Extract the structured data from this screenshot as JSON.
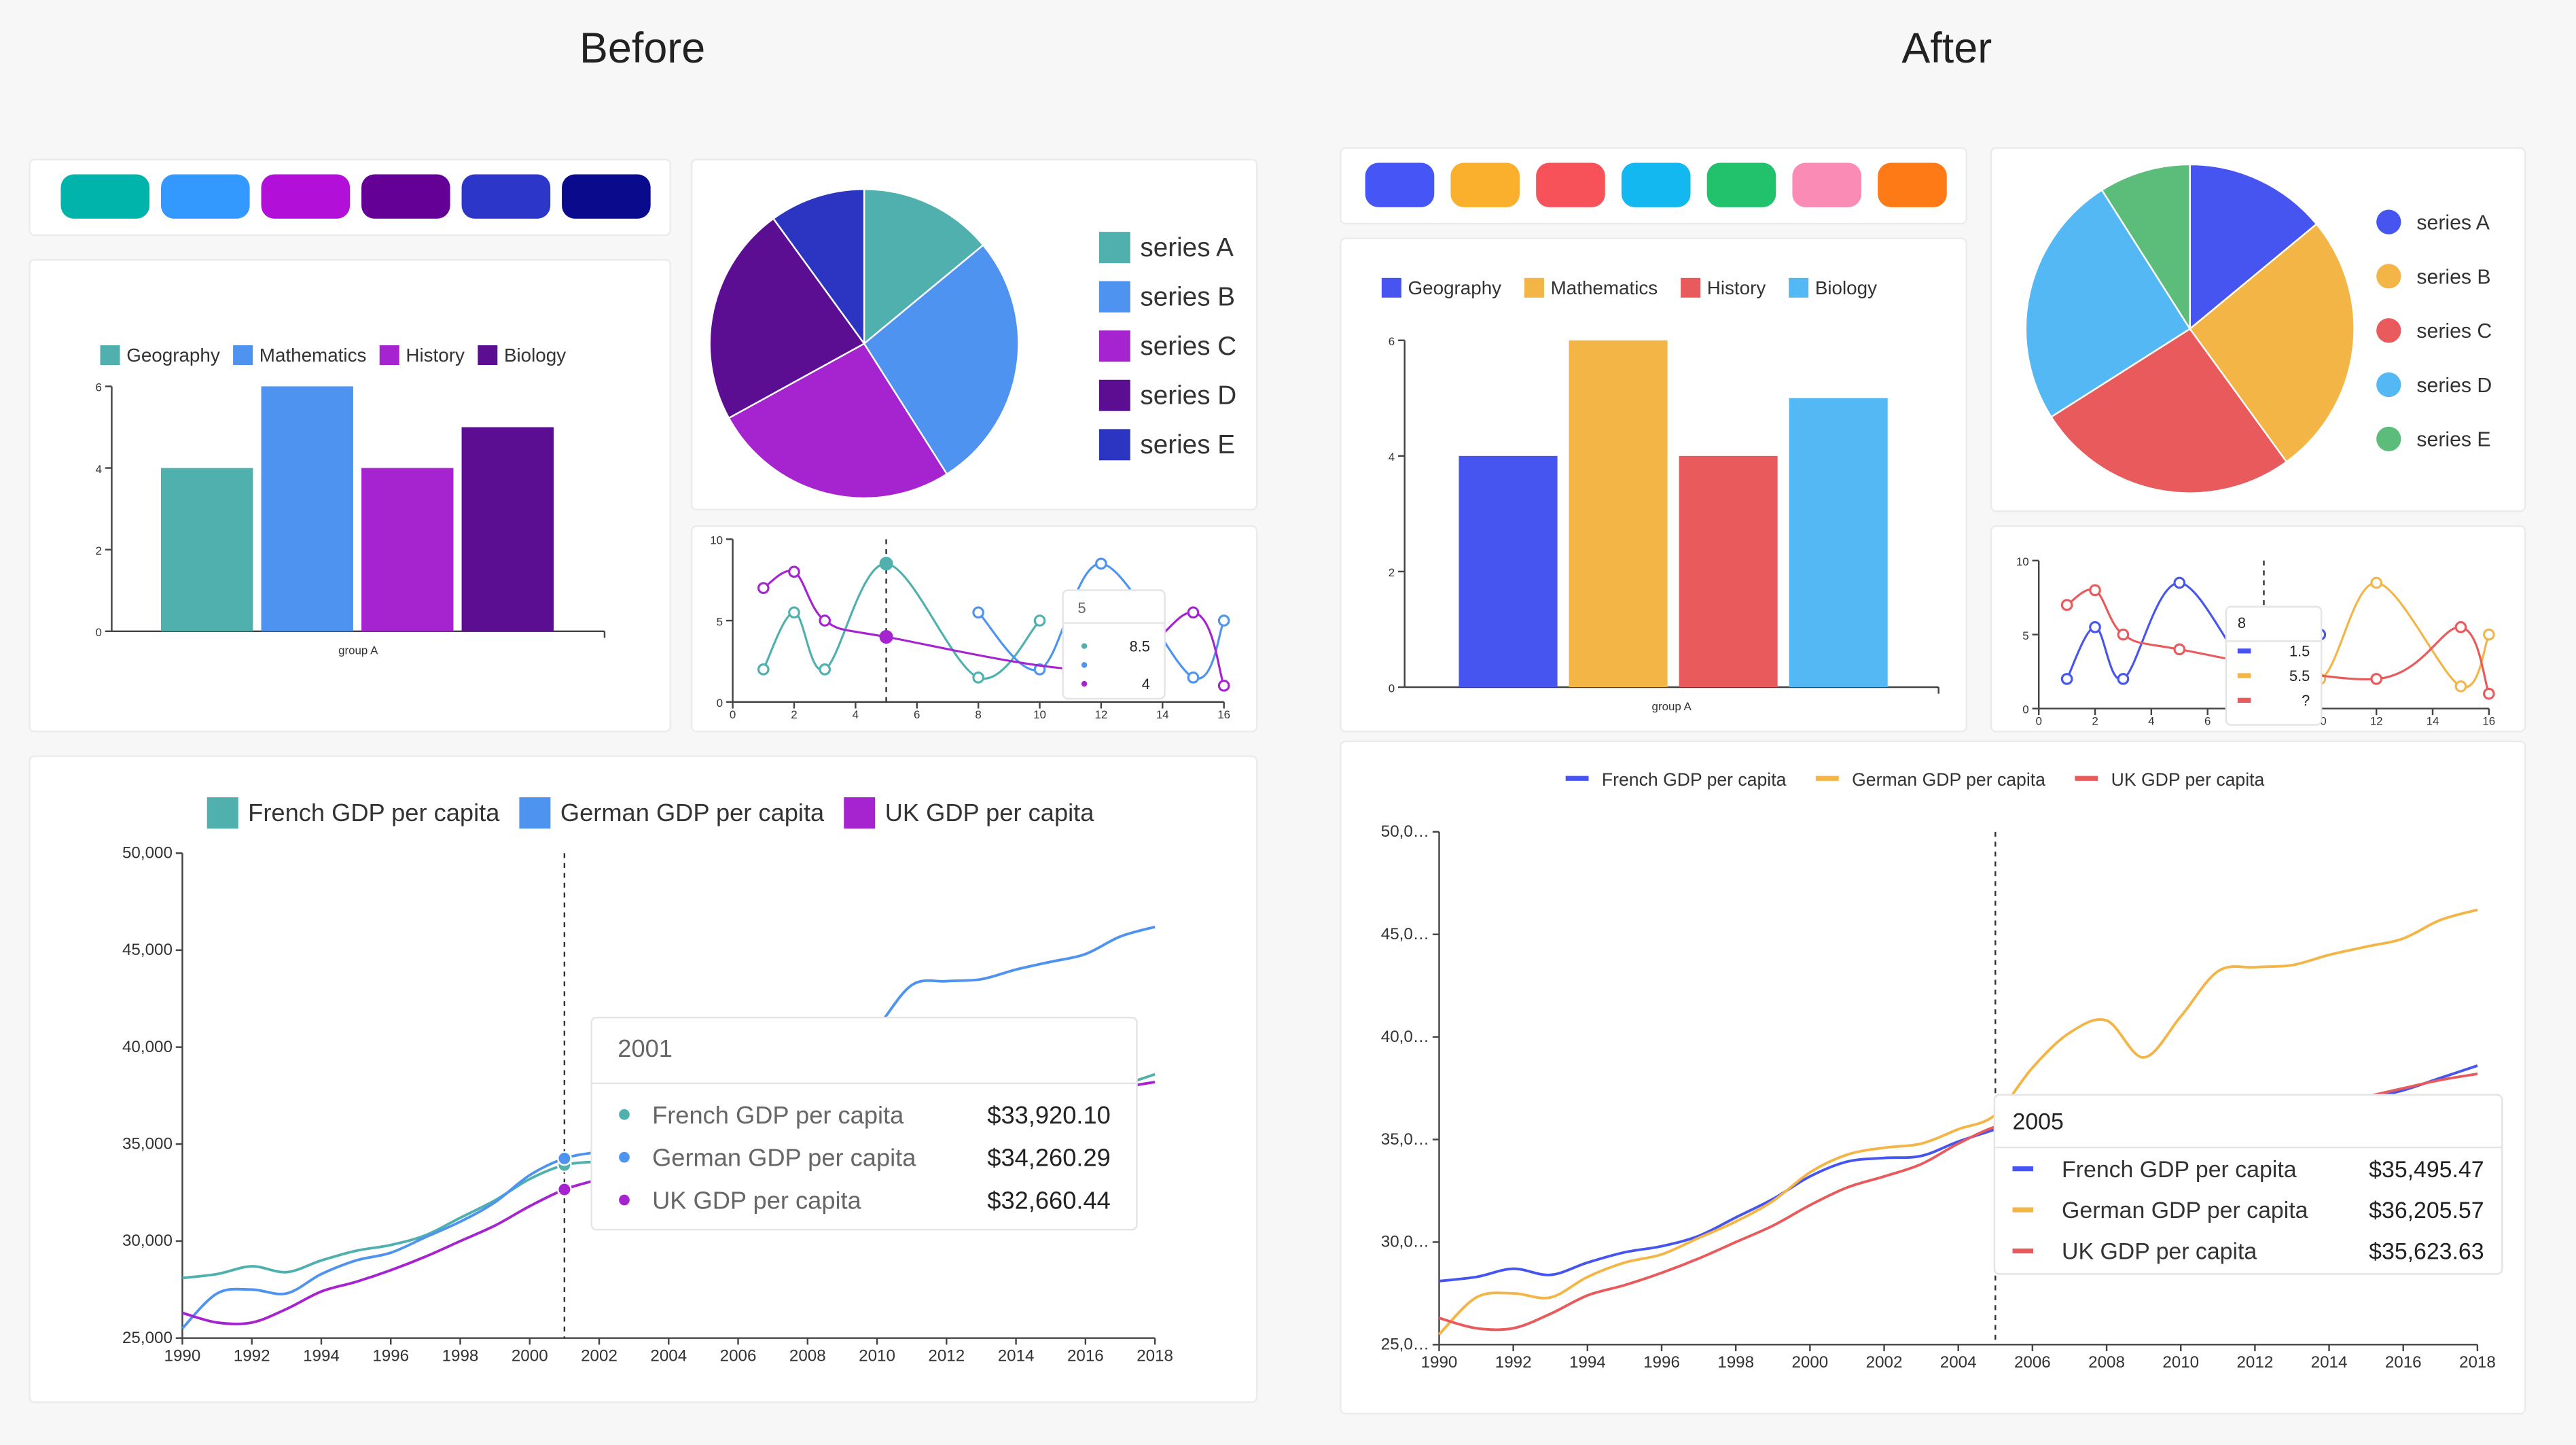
{
  "titles": {
    "before": "Before",
    "after": "After"
  },
  "swatches": {
    "before": [
      "#00b3ab",
      "#3399ff",
      "#b20fd8",
      "#640096",
      "#2c36c8",
      "#0a0a8c"
    ],
    "after": [
      "#4655f5",
      "#fbb02d",
      "#f7525a",
      "#13b8f0",
      "#22c16c",
      "#f98bb4",
      "#fd7a17"
    ]
  },
  "chart_data": [
    {
      "id": "bar-before",
      "type": "bar",
      "categories": [
        "group A"
      ],
      "series": [
        {
          "name": "Geography",
          "values": [
            4
          ],
          "color": "#4fb0ae"
        },
        {
          "name": "Mathematics",
          "values": [
            6
          ],
          "color": "#4f93f0"
        },
        {
          "name": "History",
          "values": [
            4
          ],
          "color": "#a623d0"
        },
        {
          "name": "Biology",
          "values": [
            5
          ],
          "color": "#5c0e93"
        }
      ],
      "ylim": [
        0,
        6
      ],
      "yticks": [
        "0",
        "2",
        "4",
        "6"
      ],
      "legend": "top",
      "legend_marker": "square"
    },
    {
      "id": "bar-after",
      "type": "bar",
      "categories": [
        "group A"
      ],
      "series": [
        {
          "name": "Geography",
          "values": [
            4
          ],
          "color": "#4655f0"
        },
        {
          "name": "Mathematics",
          "values": [
            6
          ],
          "color": "#f4b547"
        },
        {
          "name": "History",
          "values": [
            4
          ],
          "color": "#e85a5c"
        },
        {
          "name": "Biology",
          "values": [
            5
          ],
          "color": "#54b8f5"
        }
      ],
      "ylim": [
        0,
        6
      ],
      "yticks": [
        "0",
        "2",
        "4",
        "6"
      ],
      "legend": "top",
      "legend_marker": "square"
    },
    {
      "id": "pie-before",
      "type": "pie",
      "labels": [
        "series A",
        "series B",
        "series C",
        "series D",
        "series E"
      ],
      "values": [
        14,
        27,
        26,
        23,
        10
      ],
      "colors": [
        "#4fb0ae",
        "#4f93f0",
        "#a623d0",
        "#5c0e93",
        "#2c35c2"
      ],
      "legend": "right",
      "legend_marker": "square"
    },
    {
      "id": "pie-after",
      "type": "pie",
      "labels": [
        "series A",
        "series B",
        "series C",
        "series D",
        "series E"
      ],
      "values": [
        14,
        26,
        26,
        25,
        9
      ],
      "colors": [
        "#4655f0",
        "#f4b547",
        "#e85a5c",
        "#54b8f5",
        "#5cbd7b"
      ],
      "legend": "right",
      "legend_marker": "circle"
    },
    {
      "id": "small-line-before",
      "type": "line",
      "x": [
        1,
        2,
        3,
        5,
        8,
        10,
        12,
        15,
        16
      ],
      "series": [
        {
          "values": [
            2,
            5.5,
            2,
            8.5,
            1.5,
            5,
            null,
            null,
            null
          ],
          "color": "#4fb0ae"
        },
        {
          "values": [
            null,
            null,
            null,
            null,
            5.5,
            2,
            8.5,
            1.5,
            5
          ],
          "color": "#4f93f0"
        },
        {
          "values": [
            7,
            8,
            5,
            4,
            null,
            null,
            2,
            5.5,
            1
          ],
          "color": "#a623d0"
        }
      ],
      "xlim": [
        0,
        16
      ],
      "ylim": [
        0,
        10
      ],
      "xticks": [
        "0",
        "2",
        "4",
        "6",
        "8",
        "10",
        "12",
        "14",
        "16"
      ],
      "yticks": [
        "0",
        "5",
        "10"
      ],
      "crosshair": 5,
      "tooltip": {
        "title": "5",
        "rows": [
          "8.5",
          "",
          "4"
        ],
        "marker": "circle"
      }
    },
    {
      "id": "small-line-after",
      "type": "line",
      "x": [
        1,
        2,
        3,
        5,
        8,
        10,
        12,
        15,
        16
      ],
      "series": [
        {
          "values": [
            2,
            5.5,
            2,
            8.5,
            1.5,
            5,
            null,
            null,
            null
          ],
          "color": "#4655f0"
        },
        {
          "values": [
            null,
            null,
            null,
            null,
            5.5,
            2,
            8.5,
            1.5,
            5
          ],
          "color": "#f4b547"
        },
        {
          "values": [
            7,
            8,
            5,
            4,
            null,
            null,
            2,
            5.5,
            1
          ],
          "color": "#e85a5c"
        }
      ],
      "xlim": [
        0,
        16
      ],
      "ylim": [
        0,
        10
      ],
      "xticks": [
        "0",
        "2",
        "4",
        "6",
        "8",
        "10",
        "12",
        "14",
        "16"
      ],
      "yticks": [
        "0",
        "5",
        "10"
      ],
      "crosshair": 8,
      "tooltip": {
        "title": "8",
        "rows": [
          "1.5",
          "5.5",
          "?"
        ],
        "marker": "line"
      }
    },
    {
      "id": "gdp-before",
      "type": "line",
      "x": [
        1990,
        1991,
        1992,
        1993,
        1994,
        1995,
        1996,
        1997,
        1998,
        1999,
        2000,
        2001,
        2002,
        2003,
        2004,
        2005,
        2006,
        2007,
        2008,
        2009,
        2010,
        2011,
        2012,
        2013,
        2014,
        2015,
        2016,
        2017,
        2018
      ],
      "series": [
        {
          "name": "French GDP per capita",
          "color": "#4fb0ae",
          "values": [
            28100,
            28300,
            28700,
            28400,
            29000,
            29500,
            29800,
            30300,
            31200,
            32100,
            33200,
            33920.1,
            34100,
            34200,
            34900,
            35495.47,
            36100,
            36600,
            36500,
            35300,
            35900,
            36400,
            36200,
            36300,
            36600,
            37000,
            37400,
            38000,
            38600
          ]
        },
        {
          "name": "German GDP per capita",
          "color": "#4f93f0",
          "values": [
            25500,
            27300,
            27500,
            27300,
            28300,
            29000,
            29400,
            30200,
            31000,
            32000,
            33400,
            34260.29,
            34600,
            34800,
            35500,
            36205.57,
            38500,
            40200,
            40800,
            39000,
            41000,
            43200,
            43400,
            43500,
            44000,
            44400,
            44800,
            45700,
            46200
          ]
        },
        {
          "name": "UK GDP per capita",
          "color": "#a623d0",
          "values": [
            26300,
            25800,
            25800,
            26500,
            27400,
            27900,
            28500,
            29200,
            30000,
            30800,
            31800,
            32660.44,
            33200,
            33800,
            34800,
            35623.63,
            36000,
            36300,
            36000,
            35000,
            35500,
            35900,
            36000,
            36300,
            36800,
            37100,
            37500,
            37900,
            38200
          ]
        }
      ],
      "xlim": [
        1990,
        2018
      ],
      "ylim": [
        25000,
        50000
      ],
      "xticks": [
        "1990",
        "1992",
        "1994",
        "1996",
        "1998",
        "2000",
        "2002",
        "2004",
        "2006",
        "2008",
        "2010",
        "2012",
        "2014",
        "2016",
        "2018"
      ],
      "yticks": [
        "25,000",
        "30,000",
        "35,000",
        "40,000",
        "45,000",
        "50,000"
      ],
      "legend": "top",
      "legend_marker": "square",
      "crosshair": 2001,
      "tooltip": {
        "title": "2001",
        "rows": [
          {
            "name": "French GDP per capita",
            "value": "$33,920.10"
          },
          {
            "name": "German GDP per capita",
            "value": "$34,260.29"
          },
          {
            "name": "UK GDP per capita",
            "value": "$32,660.44"
          }
        ],
        "marker": "circle"
      }
    },
    {
      "id": "gdp-after",
      "type": "line",
      "x": [
        1990,
        1991,
        1992,
        1993,
        1994,
        1995,
        1996,
        1997,
        1998,
        1999,
        2000,
        2001,
        2002,
        2003,
        2004,
        2005,
        2006,
        2007,
        2008,
        2009,
        2010,
        2011,
        2012,
        2013,
        2014,
        2015,
        2016,
        2017,
        2018
      ],
      "series": [
        {
          "name": "French GDP per capita",
          "color": "#4655f0",
          "values": [
            28100,
            28300,
            28700,
            28400,
            29000,
            29500,
            29800,
            30300,
            31200,
            32100,
            33200,
            33920.1,
            34100,
            34200,
            34900,
            35495.47,
            36100,
            36600,
            36500,
            35300,
            35900,
            36400,
            36200,
            36300,
            36600,
            37000,
            37400,
            38000,
            38600
          ]
        },
        {
          "name": "German GDP per capita",
          "color": "#f4b547",
          "values": [
            25500,
            27300,
            27500,
            27300,
            28300,
            29000,
            29400,
            30200,
            31000,
            32000,
            33400,
            34260.29,
            34600,
            34800,
            35500,
            36205.57,
            38500,
            40200,
            40800,
            39000,
            41000,
            43200,
            43400,
            43500,
            44000,
            44400,
            44800,
            45700,
            46200
          ]
        },
        {
          "name": "UK GDP per capita",
          "color": "#e85a5c",
          "values": [
            26300,
            25800,
            25800,
            26500,
            27400,
            27900,
            28500,
            29200,
            30000,
            30800,
            31800,
            32660.44,
            33200,
            33800,
            34800,
            35623.63,
            36000,
            36300,
            36000,
            35000,
            35500,
            35900,
            36000,
            36300,
            36800,
            37100,
            37500,
            37900,
            38200
          ]
        }
      ],
      "xlim": [
        1990,
        2018
      ],
      "ylim": [
        25000,
        50000
      ],
      "xticks": [
        "1990",
        "1992",
        "1994",
        "1996",
        "1998",
        "2000",
        "2002",
        "2004",
        "2006",
        "2008",
        "2010",
        "2012",
        "2014",
        "2016",
        "2018"
      ],
      "yticks": [
        "25,0…",
        "30,0…",
        "35,0…",
        "40,0…",
        "45,0…",
        "50,0…"
      ],
      "legend": "top",
      "legend_marker": "line",
      "crosshair": 2005,
      "tooltip": {
        "title": "2005",
        "rows": [
          {
            "name": "French GDP per capita",
            "value": "$35,495.47"
          },
          {
            "name": "German GDP per capita",
            "value": "$36,205.57"
          },
          {
            "name": "UK GDP per capita",
            "value": "$35,623.63"
          }
        ],
        "marker": "line"
      }
    }
  ]
}
